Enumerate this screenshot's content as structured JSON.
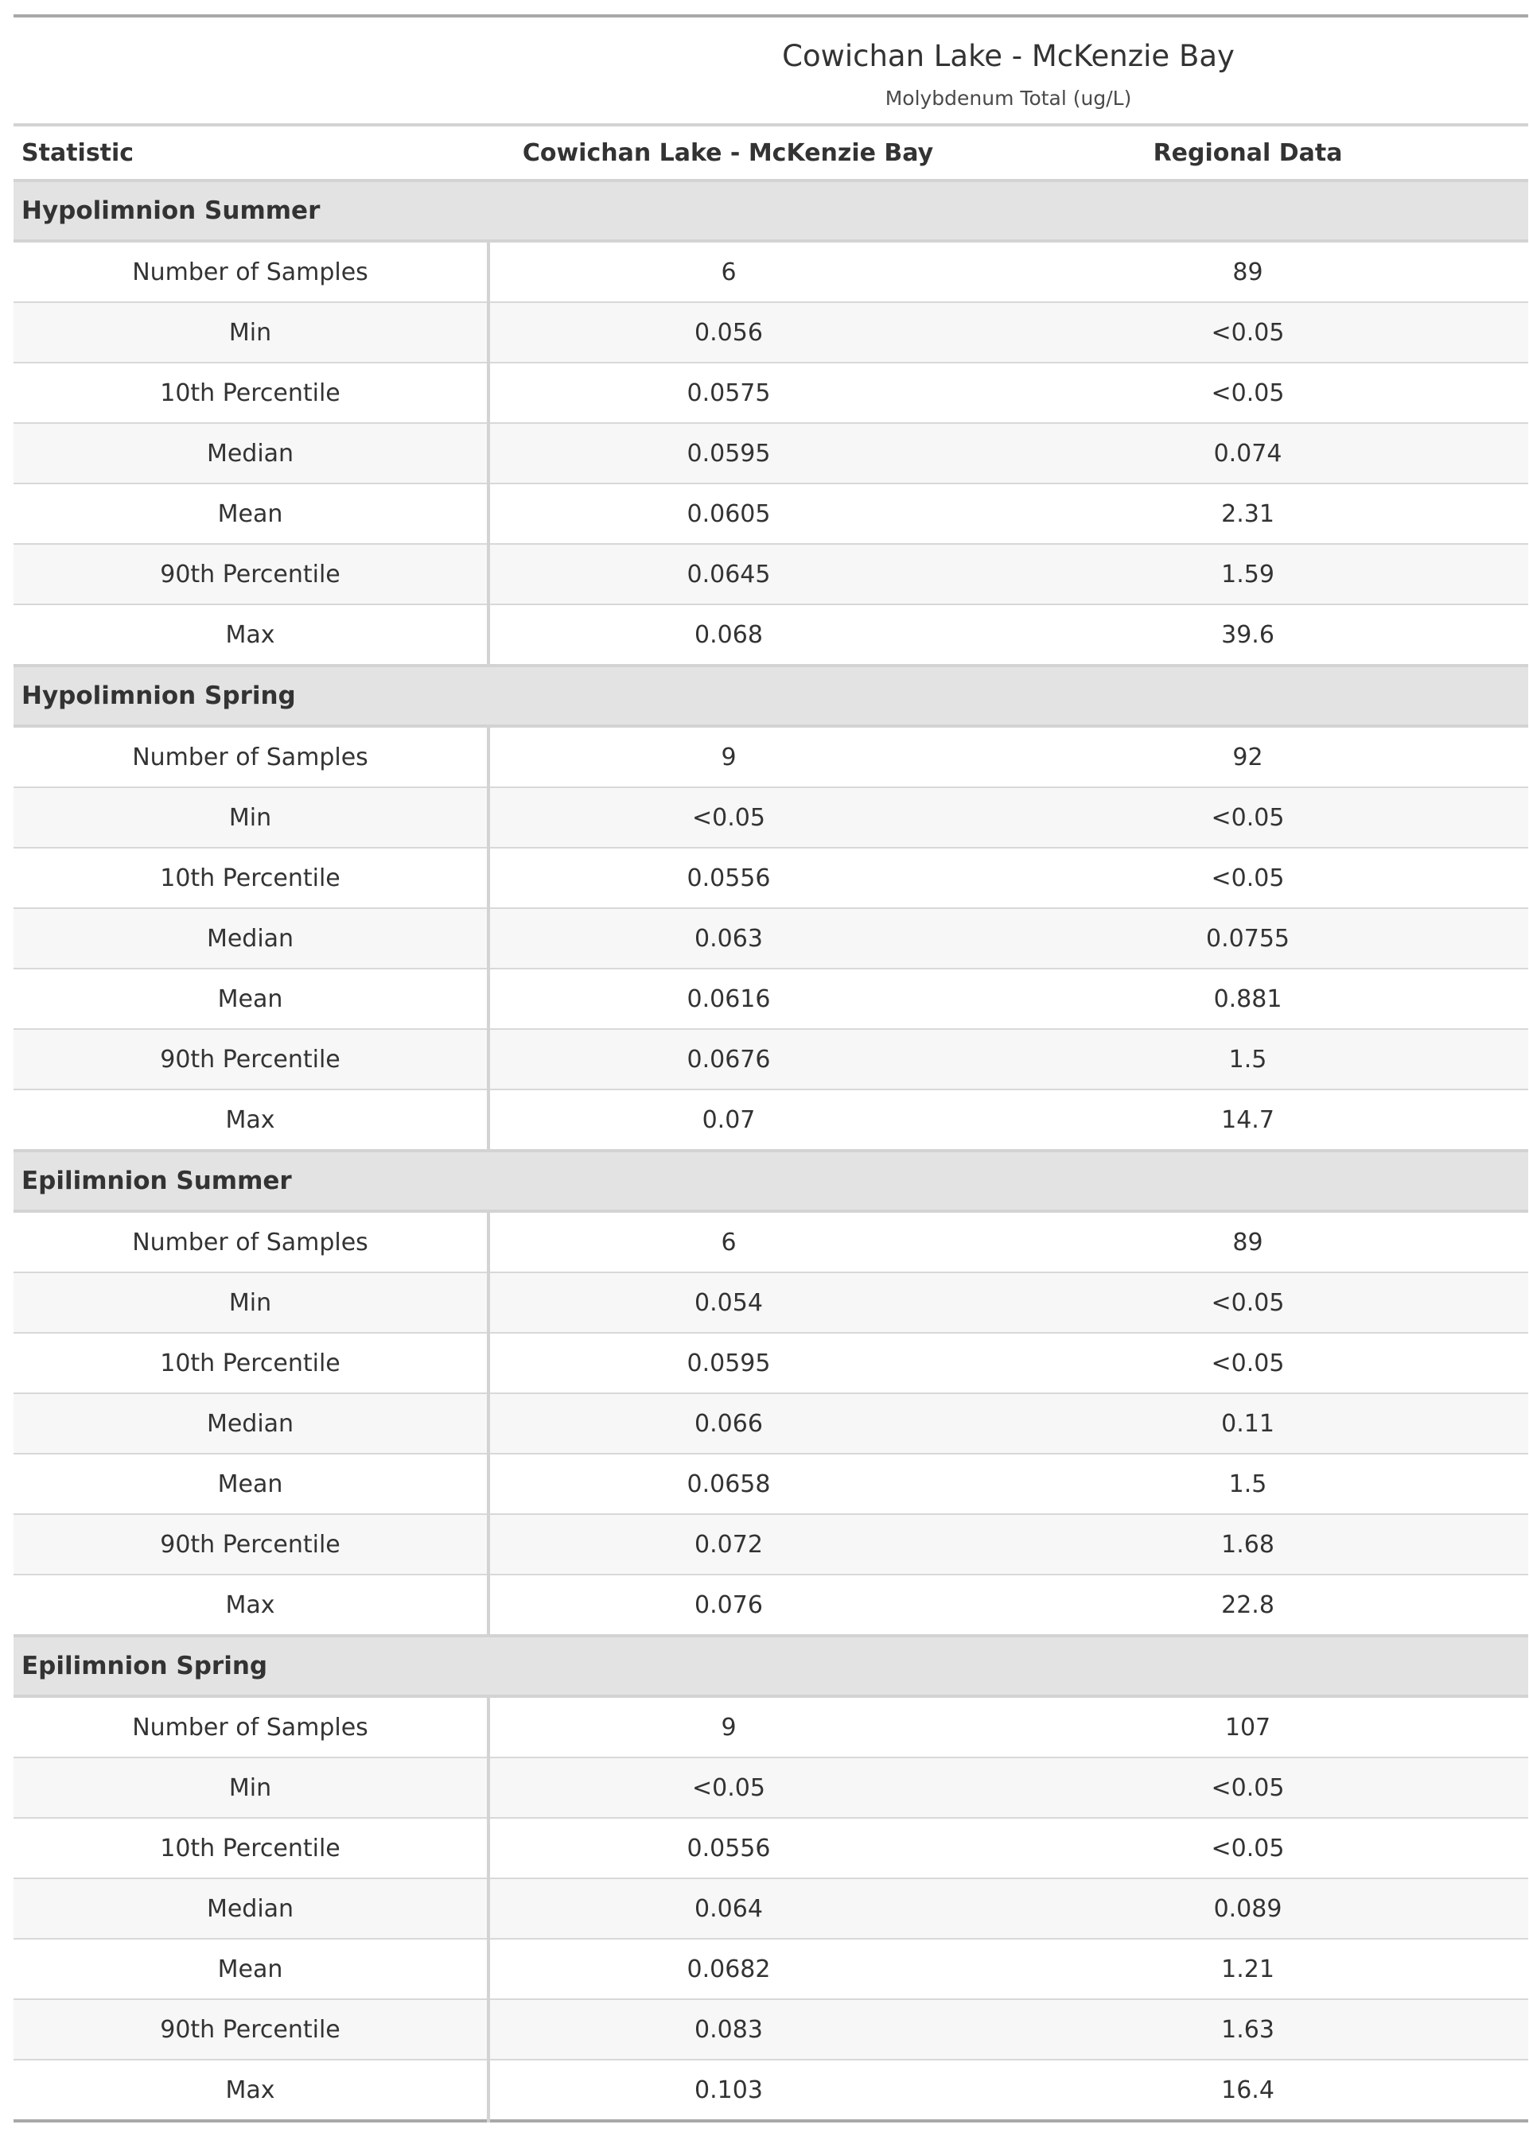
{
  "title": "Cowichan Lake - McKenzie Bay",
  "subtitle": "Molybdenum Total (ug/L)",
  "columns": [
    "Statistic",
    "Cowichan Lake - McKenzie Bay",
    "Regional Data"
  ],
  "groups": [
    {
      "name": "Hypolimnion Summer",
      "rows": [
        {
          "stat": "Number of Samples",
          "site": "6",
          "regional": "89"
        },
        {
          "stat": "Min",
          "site": "0.056",
          "regional": "<0.05"
        },
        {
          "stat": "10th Percentile",
          "site": "0.0575",
          "regional": "<0.05"
        },
        {
          "stat": "Median",
          "site": "0.0595",
          "regional": "0.074"
        },
        {
          "stat": "Mean",
          "site": "0.0605",
          "regional": "2.31"
        },
        {
          "stat": "90th Percentile",
          "site": "0.0645",
          "regional": "1.59"
        },
        {
          "stat": "Max",
          "site": "0.068",
          "regional": "39.6"
        }
      ]
    },
    {
      "name": "Hypolimnion Spring",
      "rows": [
        {
          "stat": "Number of Samples",
          "site": "9",
          "regional": "92"
        },
        {
          "stat": "Min",
          "site": "<0.05",
          "regional": "<0.05"
        },
        {
          "stat": "10th Percentile",
          "site": "0.0556",
          "regional": "<0.05"
        },
        {
          "stat": "Median",
          "site": "0.063",
          "regional": "0.0755"
        },
        {
          "stat": "Mean",
          "site": "0.0616",
          "regional": "0.881"
        },
        {
          "stat": "90th Percentile",
          "site": "0.0676",
          "regional": "1.5"
        },
        {
          "stat": "Max",
          "site": "0.07",
          "regional": "14.7"
        }
      ]
    },
    {
      "name": "Epilimnion Summer",
      "rows": [
        {
          "stat": "Number of Samples",
          "site": "6",
          "regional": "89"
        },
        {
          "stat": "Min",
          "site": "0.054",
          "regional": "<0.05"
        },
        {
          "stat": "10th Percentile",
          "site": "0.0595",
          "regional": "<0.05"
        },
        {
          "stat": "Median",
          "site": "0.066",
          "regional": "0.11"
        },
        {
          "stat": "Mean",
          "site": "0.0658",
          "regional": "1.5"
        },
        {
          "stat": "90th Percentile",
          "site": "0.072",
          "regional": "1.68"
        },
        {
          "stat": "Max",
          "site": "0.076",
          "regional": "22.8"
        }
      ]
    },
    {
      "name": "Epilimnion Spring",
      "rows": [
        {
          "stat": "Number of Samples",
          "site": "9",
          "regional": "107"
        },
        {
          "stat": "Min",
          "site": "<0.05",
          "regional": "<0.05"
        },
        {
          "stat": "10th Percentile",
          "site": "0.0556",
          "regional": "<0.05"
        },
        {
          "stat": "Median",
          "site": "0.064",
          "regional": "0.089"
        },
        {
          "stat": "Mean",
          "site": "0.0682",
          "regional": "1.21"
        },
        {
          "stat": "90th Percentile",
          "site": "0.083",
          "regional": "1.63"
        },
        {
          "stat": "Max",
          "site": "0.103",
          "regional": "16.4"
        }
      ]
    }
  ]
}
